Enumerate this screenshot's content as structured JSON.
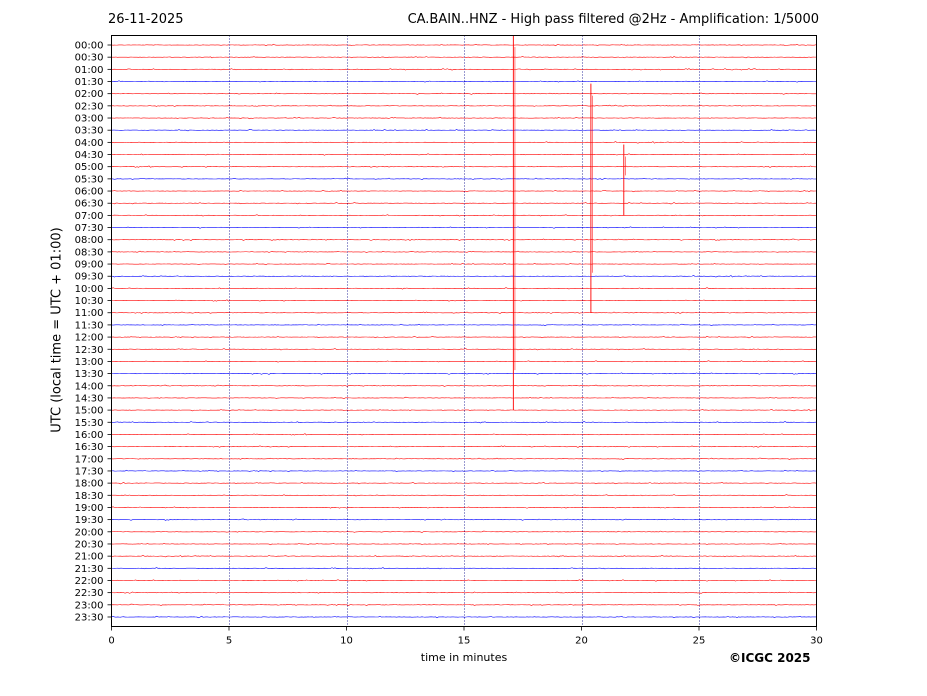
{
  "header": {
    "date": "26-11-2025",
    "title": "CA.BAIN..HNZ - High pass filtered @2Hz - Amplification: 1/5000"
  },
  "footer": {
    "copyright": "©ICGC 2025"
  },
  "colors": {
    "series_a": "#ff0000",
    "series_b": "#0000ff",
    "grid": "#00008b",
    "axis": "#000000"
  },
  "chart_data": {
    "type": "line",
    "title": "CA.BAIN..HNZ - High pass filtered @2Hz - Amplification: 1/5000",
    "xlabel": "time in minutes",
    "ylabel": "UTC (local time = UTC + 01:00)",
    "xlim": [
      0,
      30
    ],
    "x_ticks": [
      0,
      5,
      10,
      15,
      20,
      25,
      30
    ],
    "y_tick_labels": [
      "00:00",
      "00:30",
      "01:00",
      "01:30",
      "02:00",
      "02:30",
      "03:00",
      "03:30",
      "04:00",
      "04:30",
      "05:00",
      "05:30",
      "06:00",
      "06:30",
      "07:00",
      "07:30",
      "08:00",
      "08:30",
      "09:00",
      "09:30",
      "10:00",
      "10:30",
      "11:00",
      "11:30",
      "12:00",
      "12:30",
      "13:00",
      "13:30",
      "14:00",
      "14:30",
      "15:00",
      "15:30",
      "16:00",
      "16:30",
      "17:00",
      "17:30",
      "18:00",
      "18:30",
      "19:00",
      "19:30",
      "20:00",
      "20:30",
      "21:00",
      "21:30",
      "22:00",
      "22:30",
      "23:00",
      "23:30"
    ],
    "trace_colors": [
      "#ff0000",
      "#ff0000",
      "#ff0000",
      "#0000ff"
    ],
    "grid": "vertical dotted",
    "events": [
      {
        "minute": 17.1,
        "from": "00:00",
        "to": "15:00",
        "color": "#ff0000"
      },
      {
        "minute": 20.4,
        "from": "02:00",
        "to": "11:00",
        "color": "#ff0000"
      },
      {
        "minute": 21.8,
        "from": "04:30",
        "to": "07:00",
        "color": "#ff0000"
      }
    ]
  }
}
